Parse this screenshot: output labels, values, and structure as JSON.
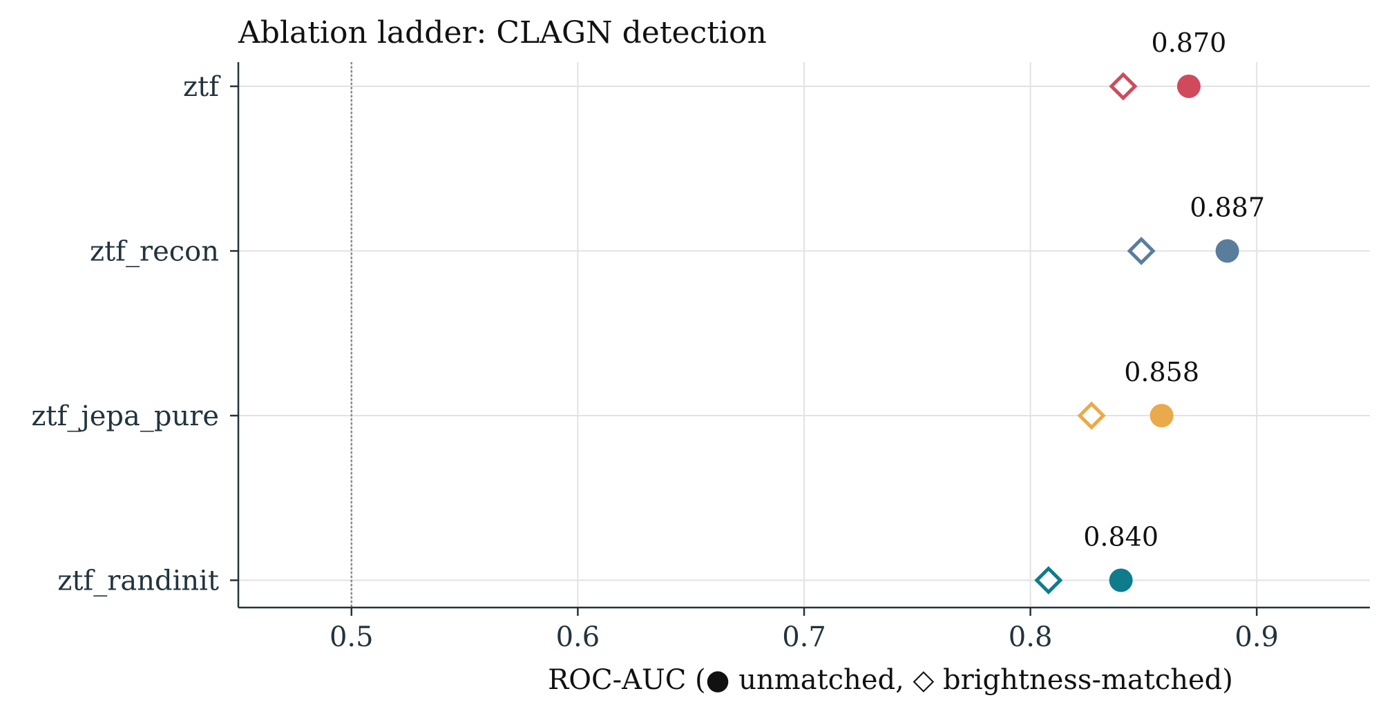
{
  "chart_data": {
    "type": "scatter",
    "title": "Ablation ladder: CLAGN detection",
    "xlabel": "ROC-AUC  (● unmatched,  ◇ brightness-matched)",
    "ylabel": "",
    "xlim": [
      0.45,
      0.95
    ],
    "xticks": [
      0.5,
      0.6,
      0.7,
      0.8,
      0.9
    ],
    "xtick_labels": [
      "0.5",
      "0.6",
      "0.7",
      "0.8",
      "0.9"
    ],
    "reference_line_x": 0.5,
    "grid": true,
    "categories": [
      "ztf",
      "ztf_recon",
      "ztf_jepa_pure",
      "ztf_randinit"
    ],
    "series": [
      {
        "name": "unmatched",
        "marker": "filled-circle",
        "values": [
          0.87,
          0.887,
          0.858,
          0.84
        ]
      },
      {
        "name": "brightness-matched",
        "marker": "open-diamond",
        "values": [
          0.841,
          0.849,
          0.827,
          0.808
        ]
      }
    ],
    "value_labels": [
      "0.870",
      "0.887",
      "0.858",
      "0.840"
    ],
    "colors": [
      "#d04a5c",
      "#5b7d9c",
      "#eaa94a",
      "#0e7c8c"
    ]
  }
}
